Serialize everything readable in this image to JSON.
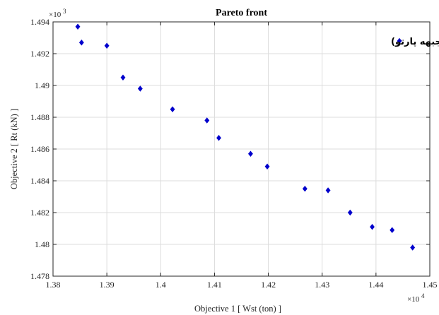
{
  "chart_data": {
    "type": "scatter",
    "title": "Pareto front",
    "xlabel": "Objective 1 [ Wst (ton)  ]",
    "ylabel": "Objective 2 [ Rt (kN) ]",
    "x_multiplier_base": "×10",
    "x_multiplier_exp": "4",
    "y_multiplier_base": "×10",
    "y_multiplier_exp": "3",
    "xlim": [
      1.38,
      1.45
    ],
    "ylim": [
      1.478,
      1.494
    ],
    "x_ticks": [
      1.38,
      1.39,
      1.4,
      1.41,
      1.42,
      1.43,
      1.44,
      1.45
    ],
    "x_tick_labels": [
      "1.38",
      "1.39",
      "1.4",
      "1.41",
      "1.42",
      "1.43",
      "1.44",
      "1.45"
    ],
    "y_ticks": [
      1.478,
      1.48,
      1.482,
      1.484,
      1.486,
      1.488,
      1.49,
      1.492,
      1.494
    ],
    "y_tick_labels": [
      "1.478",
      "1.48",
      "1.482",
      "1.484",
      "1.486",
      "1.488",
      "1.49",
      "1.492",
      "1.494"
    ],
    "grid": true,
    "legend_position": "top-right",
    "series": [
      {
        "name": "جوابهای بهینه (جبهه پارتو)",
        "color": "#0000cc",
        "marker": "diamond",
        "points": [
          {
            "x": 1.3846,
            "y": 1.4937
          },
          {
            "x": 1.3853,
            "y": 1.4927
          },
          {
            "x": 1.39,
            "y": 1.4925
          },
          {
            "x": 1.393,
            "y": 1.4905
          },
          {
            "x": 1.3962,
            "y": 1.4898
          },
          {
            "x": 1.4022,
            "y": 1.4885
          },
          {
            "x": 1.4086,
            "y": 1.4878
          },
          {
            "x": 1.4108,
            "y": 1.4867
          },
          {
            "x": 1.4167,
            "y": 1.4857
          },
          {
            "x": 1.4198,
            "y": 1.4849
          },
          {
            "x": 1.4268,
            "y": 1.4835
          },
          {
            "x": 1.4311,
            "y": 1.4834
          },
          {
            "x": 1.4352,
            "y": 1.482
          },
          {
            "x": 1.4393,
            "y": 1.4811
          },
          {
            "x": 1.443,
            "y": 1.4809
          },
          {
            "x": 1.4468,
            "y": 1.4798
          }
        ]
      }
    ]
  }
}
